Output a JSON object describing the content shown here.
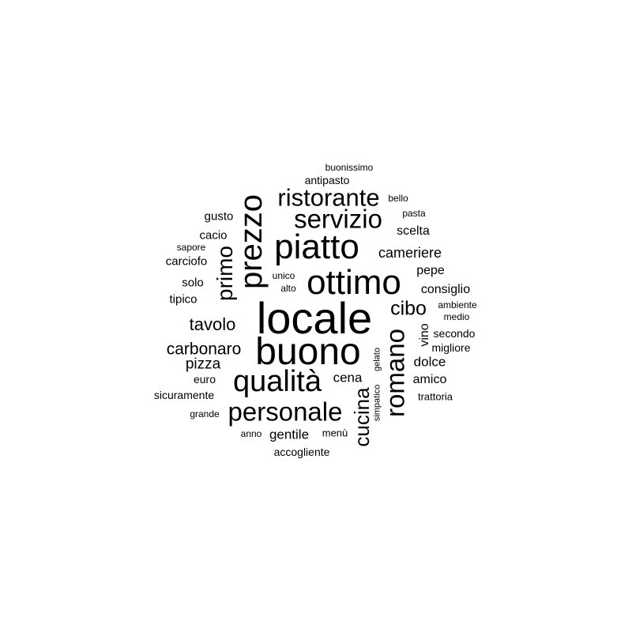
{
  "words": [
    {
      "text": "locale",
      "weight": 12
    },
    {
      "text": "buono",
      "weight": 11
    },
    {
      "text": "ottimo",
      "weight": 10
    },
    {
      "text": "piatto",
      "weight": 10
    },
    {
      "text": "prezzo",
      "weight": 9
    },
    {
      "text": "qualità",
      "weight": 9
    },
    {
      "text": "personale",
      "weight": 8
    },
    {
      "text": "romano",
      "weight": 8
    },
    {
      "text": "servizio",
      "weight": 8
    },
    {
      "text": "ristorante",
      "weight": 7
    },
    {
      "text": "primo",
      "weight": 6
    },
    {
      "text": "cucina",
      "weight": 6
    },
    {
      "text": "cibo",
      "weight": 6
    },
    {
      "text": "tavolo",
      "weight": 5
    },
    {
      "text": "carbonaro",
      "weight": 5
    },
    {
      "text": "pizza",
      "weight": 4
    },
    {
      "text": "cena",
      "weight": 4
    },
    {
      "text": "cameriere",
      "weight": 4
    },
    {
      "text": "scelta",
      "weight": 3
    },
    {
      "text": "pepe",
      "weight": 3
    },
    {
      "text": "consiglio",
      "weight": 3
    },
    {
      "text": "dolce",
      "weight": 3
    },
    {
      "text": "amico",
      "weight": 3
    },
    {
      "text": "gentile",
      "weight": 3
    },
    {
      "text": "vino",
      "weight": 3
    },
    {
      "text": "gusto",
      "weight": 2
    },
    {
      "text": "cacio",
      "weight": 2
    },
    {
      "text": "carciofo",
      "weight": 2
    },
    {
      "text": "solo",
      "weight": 2
    },
    {
      "text": "tipico",
      "weight": 2
    },
    {
      "text": "euro",
      "weight": 2
    },
    {
      "text": "sicuramente",
      "weight": 2
    },
    {
      "text": "antipasto",
      "weight": 2
    },
    {
      "text": "accogliente",
      "weight": 2
    },
    {
      "text": "secondo",
      "weight": 2
    },
    {
      "text": "migliore",
      "weight": 2
    },
    {
      "text": "trattoria",
      "weight": 2
    },
    {
      "text": "menù",
      "weight": 2
    },
    {
      "text": "buonissimo",
      "weight": 1
    },
    {
      "text": "bello",
      "weight": 1
    },
    {
      "text": "pasta",
      "weight": 1
    },
    {
      "text": "sapore",
      "weight": 1
    },
    {
      "text": "unico",
      "weight": 1
    },
    {
      "text": "alto",
      "weight": 1
    },
    {
      "text": "ambiente",
      "weight": 1
    },
    {
      "text": "medio",
      "weight": 1
    },
    {
      "text": "grande",
      "weight": 1
    },
    {
      "text": "anno",
      "weight": 1
    },
    {
      "text": "gelato",
      "weight": 1
    },
    {
      "text": "simpatico",
      "weight": 1
    }
  ]
}
